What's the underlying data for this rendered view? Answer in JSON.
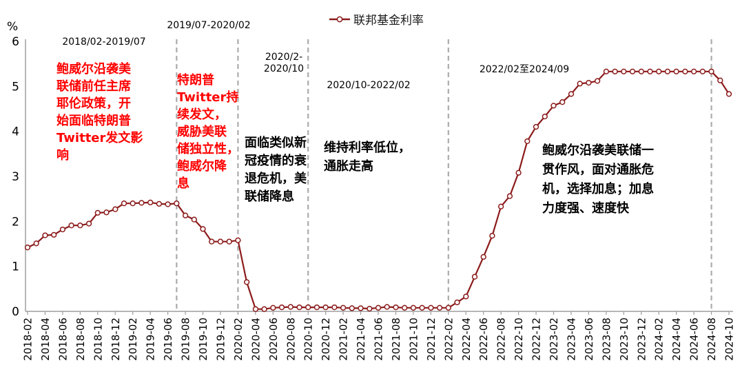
{
  "y_axis_unit": "%",
  "legend": {
    "label": "联邦基金利率"
  },
  "colors": {
    "line": "#8B1A1A",
    "marker_fill": "#ffffff",
    "axis": "#9D9D9D",
    "divider": "#ABABAB",
    "red_text": "#ff0000",
    "black_text": "#000000"
  },
  "chart_data": {
    "type": "line",
    "title": "",
    "xlabel": "",
    "ylabel": "%",
    "ylim": [
      0,
      6
    ],
    "yticks": [
      0,
      1,
      2,
      3,
      4,
      5,
      6
    ],
    "grid": false,
    "legend_position": "top-center",
    "x_label_step": 2,
    "x": [
      "2018-02",
      "2018-03",
      "2018-04",
      "2018-05",
      "2018-06",
      "2018-07",
      "2018-08",
      "2018-09",
      "2018-10",
      "2018-11",
      "2018-12",
      "2019-01",
      "2019-02",
      "2019-03",
      "2019-04",
      "2019-05",
      "2019-06",
      "2019-07",
      "2019-08",
      "2019-09",
      "2019-10",
      "2019-11",
      "2019-12",
      "2020-01",
      "2020-02",
      "2020-03",
      "2020-04",
      "2020-05",
      "2020-06",
      "2020-07",
      "2020-08",
      "2020-09",
      "2020-10",
      "2020-11",
      "2020-12",
      "2021-01",
      "2021-02",
      "2021-03",
      "2021-04",
      "2021-05",
      "2021-06",
      "2021-07",
      "2021-08",
      "2021-09",
      "2021-10",
      "2021-11",
      "2021-12",
      "2022-01",
      "2022-02",
      "2022-03",
      "2022-04",
      "2022-05",
      "2022-06",
      "2022-07",
      "2022-08",
      "2022-09",
      "2022-10",
      "2022-11",
      "2022-12",
      "2023-01",
      "2023-02",
      "2023-03",
      "2023-04",
      "2023-05",
      "2023-06",
      "2023-07",
      "2023-08",
      "2023-09",
      "2023-10",
      "2023-11",
      "2023-12",
      "2024-01",
      "2024-02",
      "2024-03",
      "2024-04",
      "2024-05",
      "2024-06",
      "2024-07",
      "2024-08",
      "2024-09",
      "2024-10"
    ],
    "series": [
      {
        "name": "联邦基金利率",
        "color": "#8B1A1A",
        "values": [
          1.42,
          1.51,
          1.69,
          1.7,
          1.82,
          1.91,
          1.91,
          1.95,
          2.19,
          2.2,
          2.27,
          2.4,
          2.4,
          2.41,
          2.42,
          2.39,
          2.38,
          2.4,
          2.13,
          2.04,
          1.83,
          1.55,
          1.55,
          1.55,
          1.58,
          0.65,
          0.05,
          0.05,
          0.08,
          0.09,
          0.1,
          0.09,
          0.09,
          0.09,
          0.09,
          0.09,
          0.08,
          0.07,
          0.07,
          0.06,
          0.08,
          0.1,
          0.09,
          0.08,
          0.08,
          0.08,
          0.08,
          0.08,
          0.08,
          0.2,
          0.33,
          0.77,
          1.21,
          1.68,
          2.33,
          2.56,
          3.08,
          3.78,
          4.1,
          4.33,
          4.57,
          4.65,
          4.83,
          5.06,
          5.08,
          5.12,
          5.33,
          5.33,
          5.33,
          5.33,
          5.33,
          5.33,
          5.33,
          5.33,
          5.33,
          5.33,
          5.33,
          5.33,
          5.33,
          5.13,
          4.83
        ]
      }
    ],
    "dividers": [
      "2019-07",
      "2020-02",
      "2020-10",
      "2022-02",
      "2024-08"
    ]
  },
  "annotations": {
    "periods": [
      {
        "text": "2018/02-2019/07"
      },
      {
        "text": "2019/07-2020/02"
      },
      {
        "text": "2020/2-\n2020/10"
      },
      {
        "text": "2020/10-2022/02"
      },
      {
        "text": "2022/02至2024/09"
      }
    ],
    "red_notes": [
      {
        "text": "鲍威尔沿袭美\n联储前任主席\n耶伦政策，开\n始面临特朗普\nTwitter发文影\n响"
      },
      {
        "text": "特朗普\nTwitter持\n续发文，\n威胁美联\n储独立性，\n鲍威尔降\n息"
      }
    ],
    "black_notes": [
      {
        "text": "面临类似新\n冠疫情的衰\n退危机，美\n联储降息"
      },
      {
        "text": "维持利率低位，\n通胀走高"
      },
      {
        "text": "鲍威尔沿袭美联储一\n贯作风，面对通胀危\n机，选择加息；加息\n力度强、速度快"
      }
    ]
  }
}
